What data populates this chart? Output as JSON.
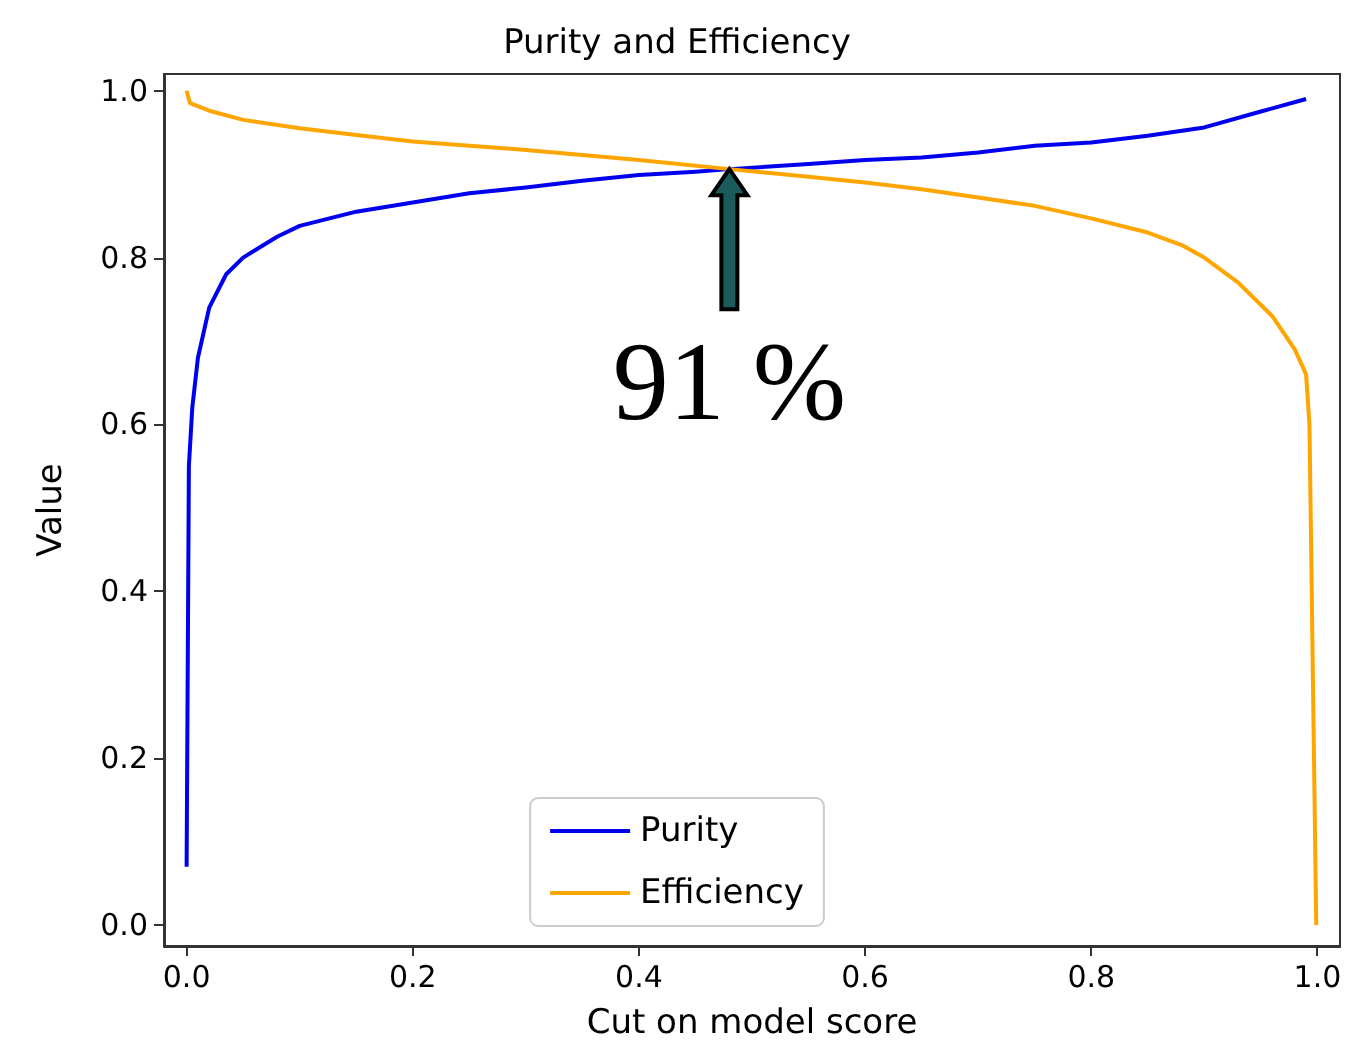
{
  "chart_data": {
    "type": "line",
    "title": "Purity and Efficiency",
    "xlabel": "Cut on model score",
    "ylabel": "Value",
    "xlim": [
      -0.02,
      1.02
    ],
    "ylim": [
      -0.025,
      1.02
    ],
    "xticks": [
      {
        "value": 0,
        "label": "0.0"
      },
      0.2,
      0.4,
      0.6,
      0.8,
      {
        "value": 1,
        "label": "1.0"
      }
    ],
    "yticks": [
      {
        "value": 0,
        "label": "0.0"
      },
      0.2,
      0.4,
      0.6,
      0.8,
      {
        "value": 1,
        "label": "1.0"
      }
    ],
    "grid": false,
    "legend": "bottom",
    "marker": "none",
    "line_style": "solid",
    "annotations": [
      {
        "text": "91 %",
        "x": 0.48,
        "y": 0.906
      }
    ],
    "series": [
      {
        "name": "Purity",
        "color": "#0000ee",
        "x": [
          0,
          0.002,
          0.005,
          0.01,
          0.02,
          0.035,
          0.05,
          0.08,
          0.1,
          0.15,
          0.2,
          0.25,
          0.3,
          0.35,
          0.4,
          0.45,
          0.48,
          0.55,
          0.6,
          0.65,
          0.7,
          0.75,
          0.8,
          0.85,
          0.9,
          0.95,
          0.99
        ],
        "values": [
          0.07,
          0.55,
          0.62,
          0.68,
          0.74,
          0.78,
          0.8,
          0.825,
          0.838,
          0.855,
          0.866,
          0.877,
          0.884,
          0.892,
          0.899,
          0.903,
          0.906,
          0.912,
          0.917,
          0.92,
          0.926,
          0.934,
          0.938,
          0.946,
          0.956,
          0.975,
          0.99
        ]
      },
      {
        "name": "Efficiency",
        "color": "#ffa500",
        "x": [
          0,
          0.003,
          0.02,
          0.05,
          0.1,
          0.15,
          0.2,
          0.3,
          0.4,
          0.48,
          0.55,
          0.6,
          0.65,
          0.7,
          0.75,
          0.8,
          0.85,
          0.88,
          0.9,
          0.93,
          0.96,
          0.98,
          0.99,
          0.993,
          0.995,
          0.997,
          0.999
        ],
        "values": [
          1.0,
          0.985,
          0.976,
          0.965,
          0.955,
          0.947,
          0.939,
          0.929,
          0.917,
          0.906,
          0.897,
          0.89,
          0.882,
          0.872,
          0.862,
          0.847,
          0.83,
          0.815,
          0.8,
          0.77,
          0.73,
          0.69,
          0.66,
          0.6,
          0.4,
          0.2,
          0.0
        ]
      }
    ]
  }
}
